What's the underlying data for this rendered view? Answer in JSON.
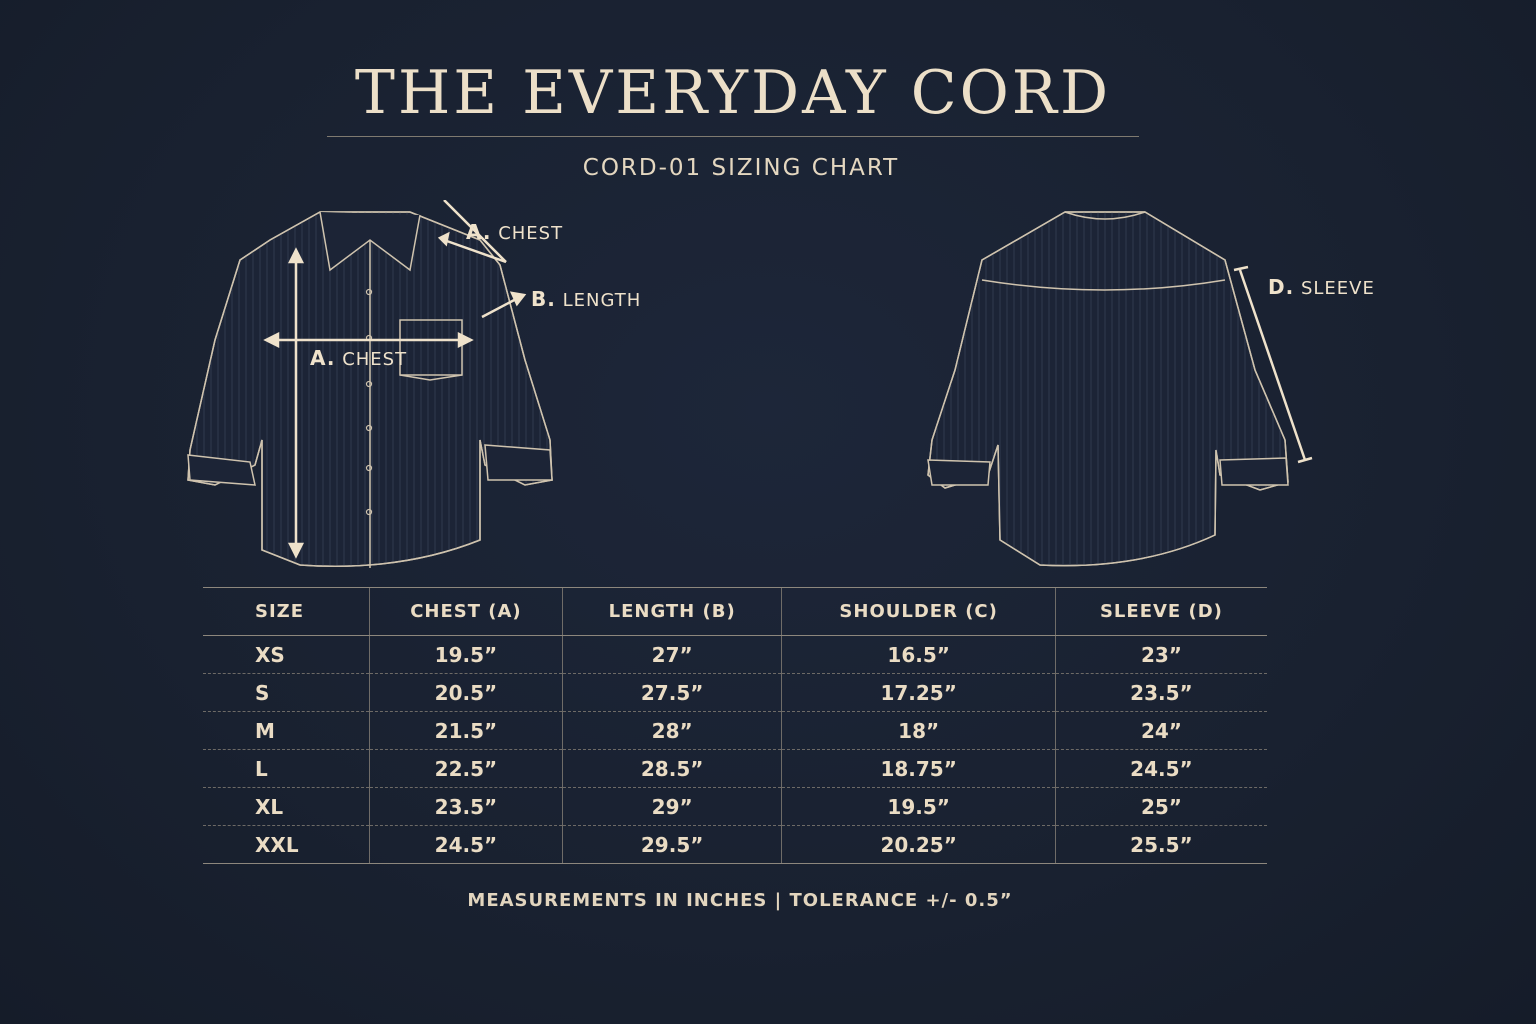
{
  "header": {
    "title": "THE EVERYDAY CORD",
    "subtitle": "CORD-01 SIZING CHART"
  },
  "diagram": {
    "front_labels": {
      "shoulder_letter": "A.",
      "shoulder_text": "CHEST",
      "length_letter": "B.",
      "length_text": "LENGTH",
      "chest_letter": "A.",
      "chest_text": "CHEST"
    },
    "back_labels": {
      "sleeve_letter": "D.",
      "sleeve_text": "SLEEVE"
    }
  },
  "table": {
    "headers": [
      "SIZE",
      "CHEST (A)",
      "LENGTH (B)",
      "SHOULDER (C)",
      "SLEEVE (D)"
    ],
    "rows": [
      [
        "XS",
        "19.5”",
        "27”",
        "16.5”",
        "23”"
      ],
      [
        "S",
        "20.5”",
        "27.5”",
        "17.25”",
        "23.5”"
      ],
      [
        "M",
        "21.5”",
        "28”",
        "18”",
        "24”"
      ],
      [
        "L",
        "22.5”",
        "28.5”",
        "18.75”",
        "24.5”"
      ],
      [
        "XL",
        "23.5”",
        "29”",
        "19.5”",
        "25”"
      ],
      [
        "XXL",
        "24.5”",
        "29.5”",
        "20.25”",
        "25.5”"
      ]
    ]
  },
  "footer": {
    "note": "MEASUREMENTS IN INCHES | TOLERANCE +/- 0.5”"
  },
  "colors": {
    "background": "#1a2232",
    "text": "#eadcc4",
    "line": "#cfc3ae"
  }
}
